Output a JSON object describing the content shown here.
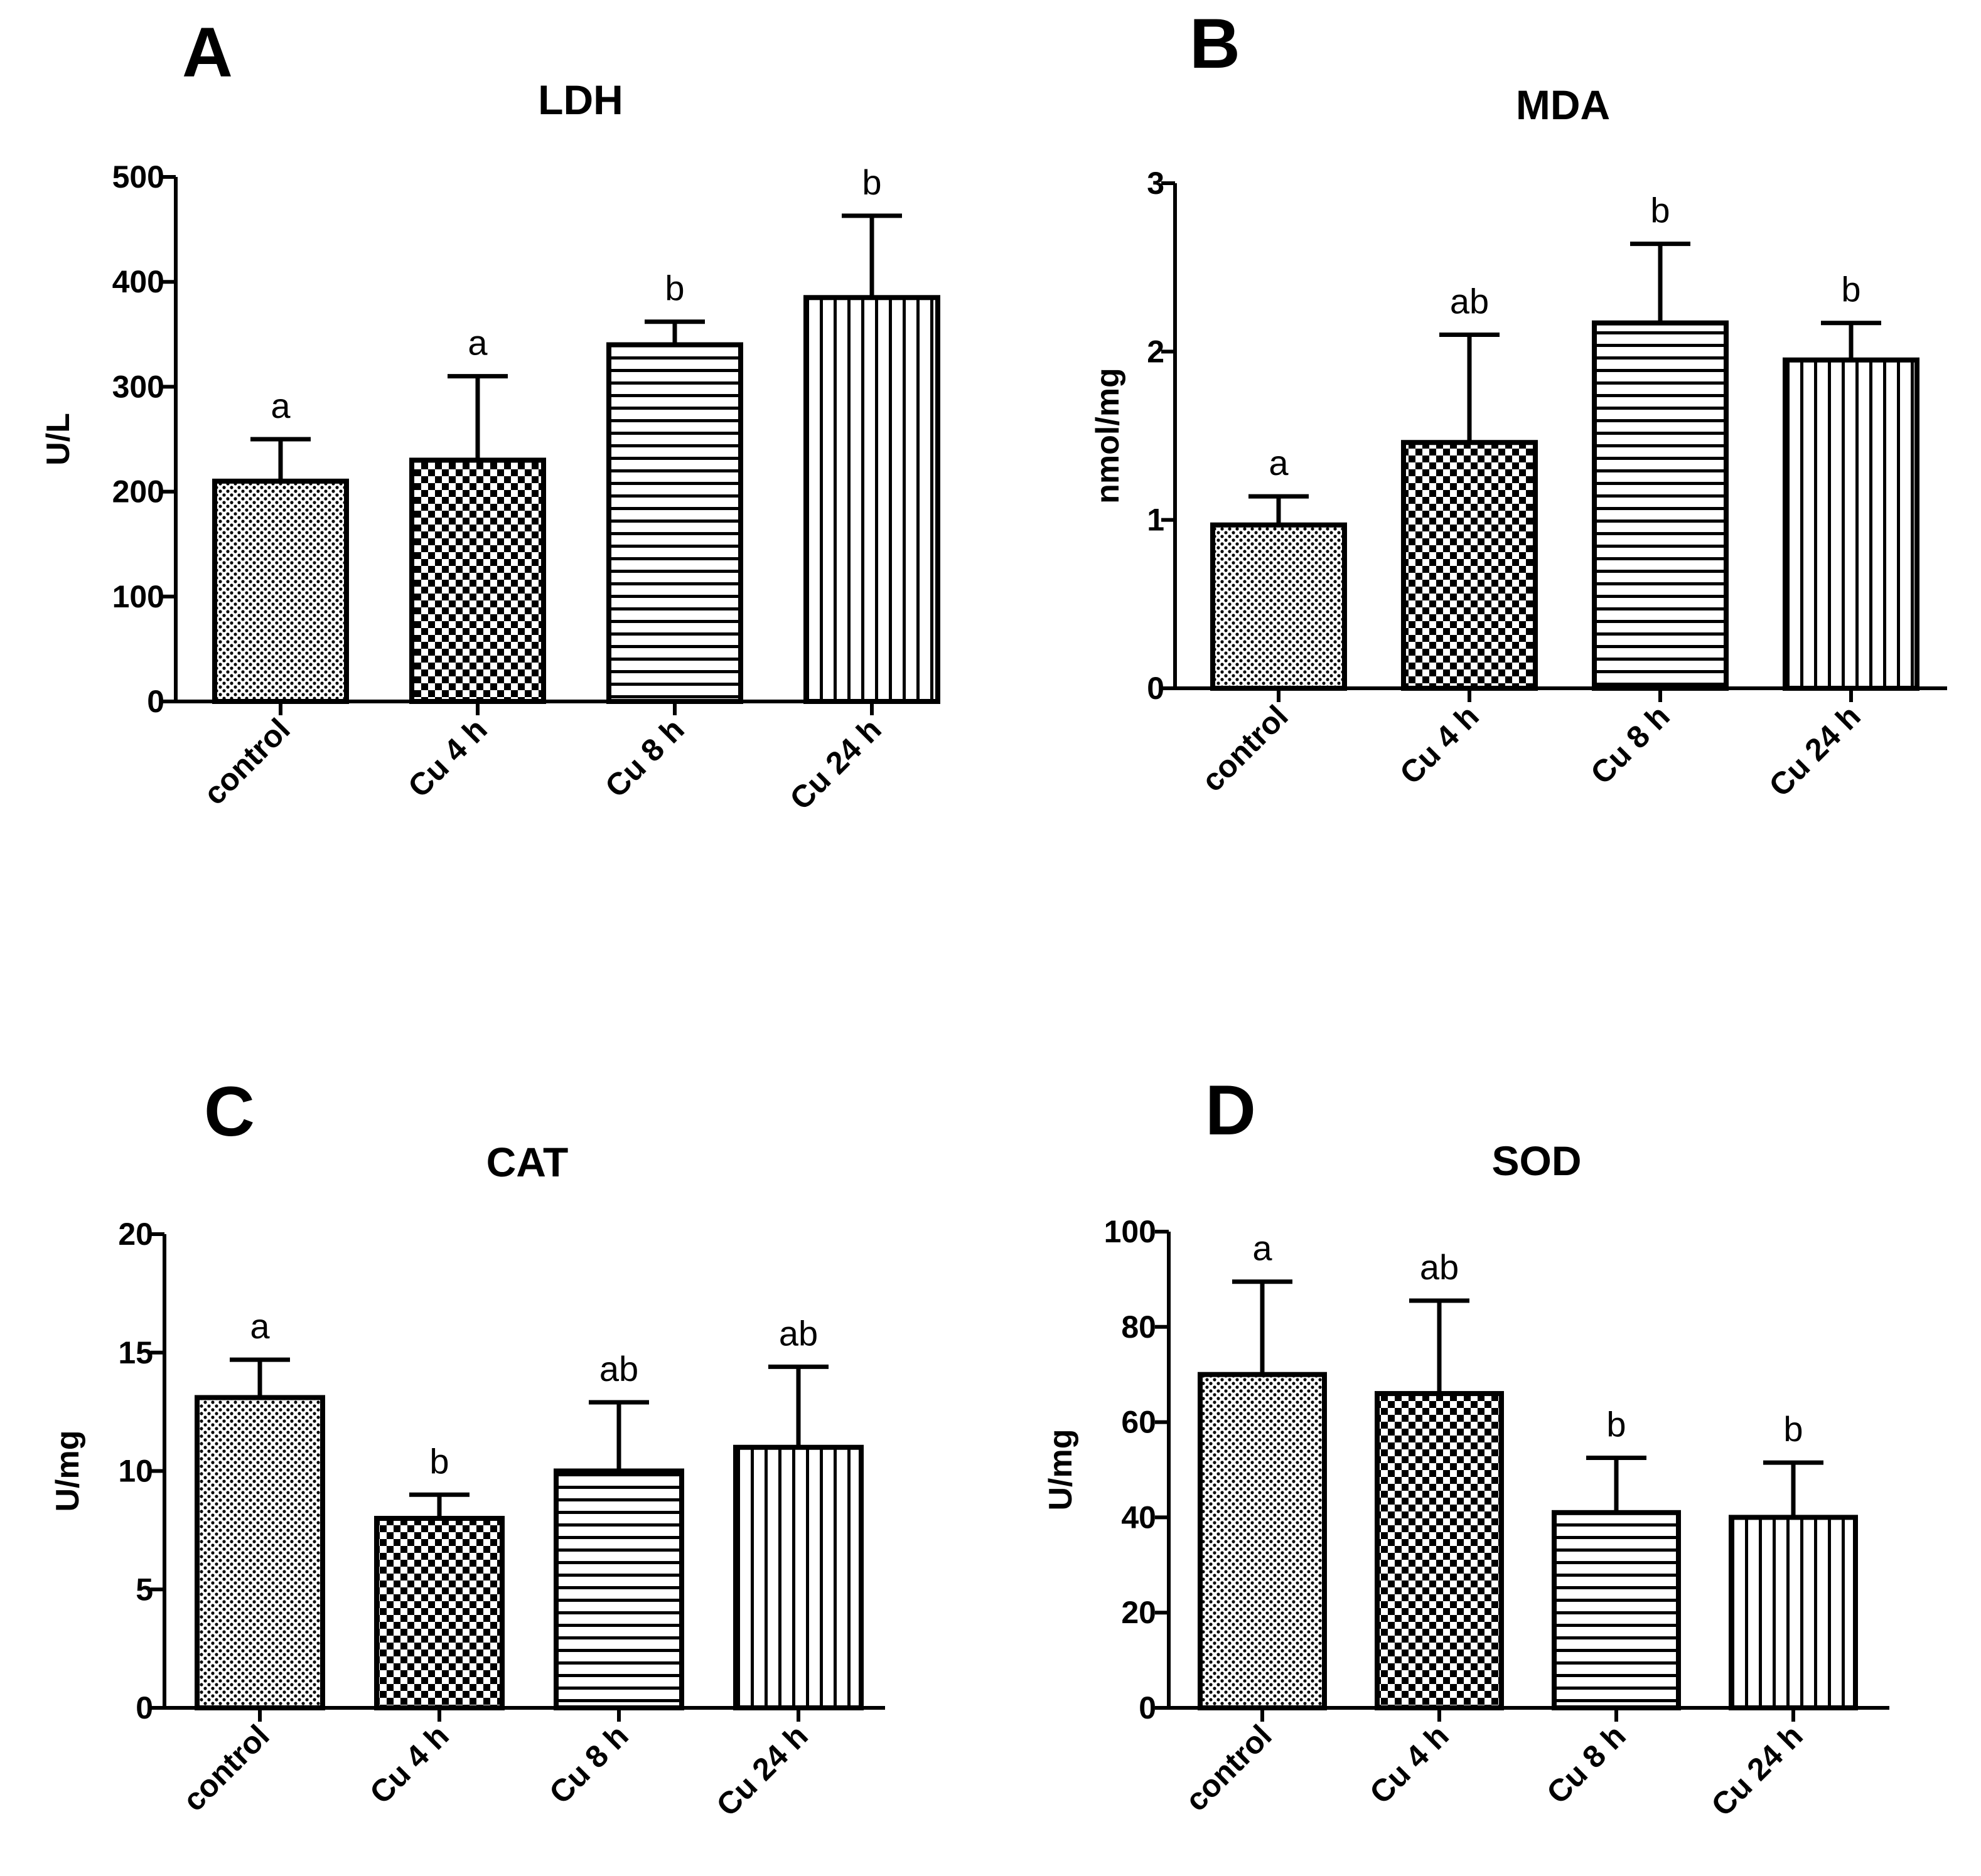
{
  "chart_data": [
    {
      "panel": "A",
      "type": "bar",
      "title": "LDH",
      "xlabel": "",
      "ylabel": "U/L",
      "ylim": [
        0,
        500
      ],
      "yticks": [
        0,
        100,
        200,
        300,
        400,
        500
      ],
      "categories": [
        "control",
        "Cu 4 h",
        "Cu 8 h",
        "Cu 24 h"
      ],
      "values": [
        210,
        230,
        340,
        385
      ],
      "errors": [
        40,
        80,
        22,
        78
      ],
      "significance": [
        "a",
        "a",
        "b",
        "b"
      ],
      "patterns": [
        "dots",
        "checker",
        "hlines",
        "vlines"
      ]
    },
    {
      "panel": "B",
      "type": "bar",
      "title": "MDA",
      "xlabel": "",
      "ylabel": "nmol/mg",
      "ylim": [
        0,
        3
      ],
      "yticks": [
        0,
        1,
        2,
        3
      ],
      "categories": [
        "control",
        "Cu 4 h",
        "Cu 8 h",
        "Cu 24 h"
      ],
      "values": [
        0.97,
        1.46,
        2.17,
        1.95
      ],
      "errors": [
        0.17,
        0.64,
        0.47,
        0.22
      ],
      "significance": [
        "a",
        "ab",
        "b",
        "b"
      ],
      "patterns": [
        "dots",
        "checker",
        "hlines",
        "vlines"
      ]
    },
    {
      "panel": "C",
      "type": "bar",
      "title": "CAT",
      "xlabel": "",
      "ylabel": "U/mg",
      "ylim": [
        0,
        20
      ],
      "yticks": [
        0,
        5,
        10,
        15,
        20
      ],
      "categories": [
        "control",
        "Cu 4 h",
        "Cu 8 h",
        "Cu 24 h"
      ],
      "values": [
        13.1,
        8.0,
        10.0,
        11.0
      ],
      "errors": [
        1.6,
        1.0,
        2.9,
        3.4
      ],
      "significance": [
        "a",
        "b",
        "ab",
        "ab"
      ],
      "patterns": [
        "dots",
        "checker",
        "hlines",
        "vlines"
      ]
    },
    {
      "panel": "D",
      "type": "bar",
      "title": "SOD",
      "xlabel": "",
      "ylabel": "U/mg",
      "ylim": [
        0,
        100
      ],
      "yticks": [
        0,
        20,
        40,
        60,
        80,
        100
      ],
      "categories": [
        "control",
        "Cu 4 h",
        "Cu 8 h",
        "Cu 24 h"
      ],
      "values": [
        70,
        66,
        41,
        40
      ],
      "errors": [
        19.5,
        19.5,
        11.5,
        11.5
      ],
      "significance": [
        "a",
        "ab",
        "b",
        "b"
      ],
      "patterns": [
        "dots",
        "checker",
        "hlines",
        "vlines"
      ]
    }
  ]
}
